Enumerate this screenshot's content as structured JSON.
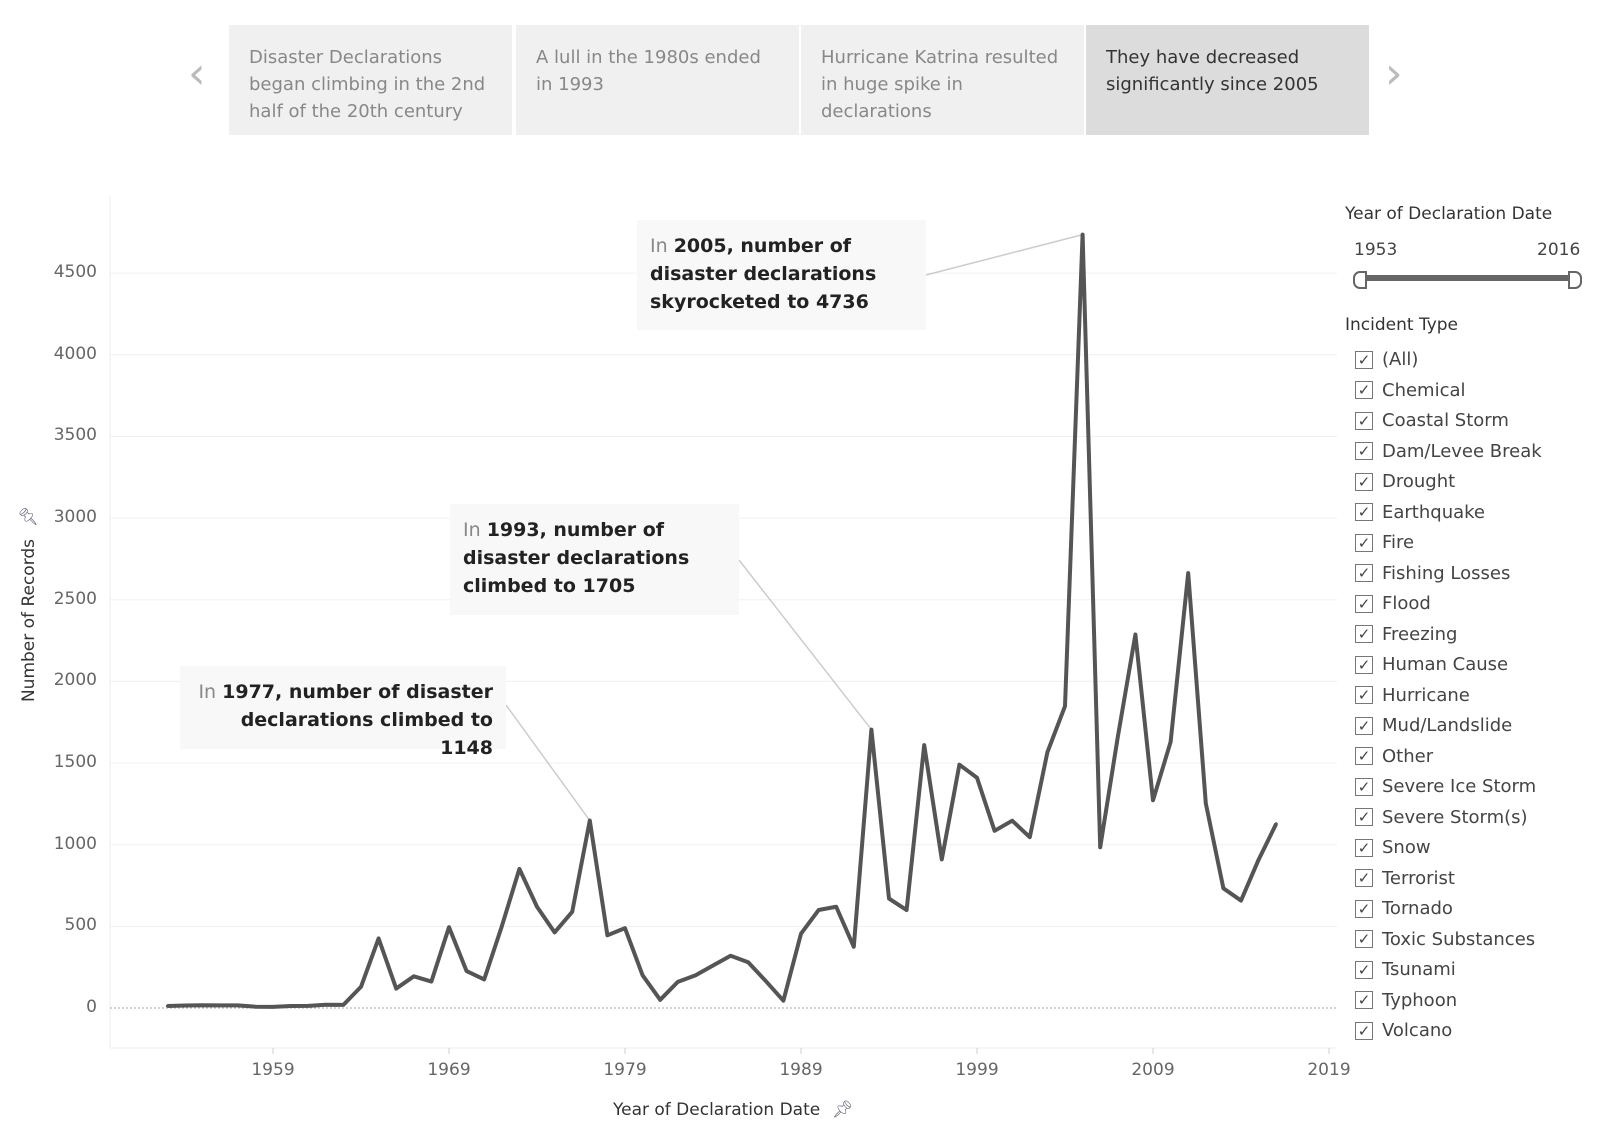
{
  "story": {
    "points": [
      "Disaster Declarations began climbing in the 2nd half of the 20th century",
      "A lull in the 1980s ended in 1993",
      "Hurricane Katrina resulted in huge spike in declarations",
      "They have decreased significantly since 2005"
    ],
    "active_index": 3,
    "prev_icon": "chevron-left-icon",
    "next_icon": "chevron-right-icon"
  },
  "annotations": [
    {
      "lead": "In ",
      "bold": "2005, number of disaster declarations skyrocketed to 4736"
    },
    {
      "lead": "In ",
      "bold": "1993, number of disaster declarations climbed to 1705"
    },
    {
      "lead": "In ",
      "bold": "1977, number of disaster declarations climbed to 1148"
    }
  ],
  "filters": {
    "year_title": "Year of Declaration Date",
    "year_min": "1953",
    "year_max": "2016",
    "incident_title": "Incident Type",
    "incident_types": [
      "(All)",
      "Chemical",
      "Coastal Storm",
      "Dam/Levee Break",
      "Drought",
      "Earthquake",
      "Fire",
      "Fishing Losses",
      "Flood",
      "Freezing",
      "Human Cause",
      "Hurricane",
      "Mud/Landslide",
      "Other",
      "Severe Ice Storm",
      "Severe Storm(s)",
      "Snow",
      "Terrorist",
      "Tornado",
      "Toxic Substances",
      "Tsunami",
      "Typhoon",
      "Volcano"
    ],
    "check_mark": "✓"
  },
  "chart_data": {
    "type": "line",
    "xlabel": "Year of Declaration Date",
    "ylabel": "Number of Records",
    "xlim": [
      1950,
      2020
    ],
    "ylim": [
      -230,
      4900
    ],
    "xticks": [
      "1959",
      "1969",
      "1979",
      "1989",
      "1999",
      "2009",
      "2019"
    ],
    "yticks": [
      "0",
      "500",
      "1000",
      "1500",
      "2000",
      "2500",
      "3000",
      "3500",
      "4000",
      "4500"
    ],
    "grid": true,
    "line_color": "#555555",
    "x": [
      1953,
      1954,
      1955,
      1956,
      1957,
      1958,
      1959,
      1960,
      1961,
      1962,
      1963,
      1964,
      1965,
      1966,
      1967,
      1968,
      1969,
      1970,
      1971,
      1972,
      1973,
      1974,
      1975,
      1976,
      1977,
      1978,
      1979,
      1980,
      1981,
      1982,
      1983,
      1984,
      1985,
      1986,
      1987,
      1988,
      1989,
      1990,
      1991,
      1992,
      1993,
      1994,
      1995,
      1996,
      1997,
      1998,
      1999,
      2000,
      2001,
      2002,
      2003,
      2004,
      2005,
      2006,
      2007,
      2008,
      2009,
      2010,
      2011,
      2012,
      2013,
      2014,
      2015,
      2016
    ],
    "y": [
      12,
      15,
      17,
      16,
      16,
      8,
      7,
      12,
      13,
      20,
      19,
      130,
      426,
      119,
      194,
      162,
      495,
      226,
      175,
      500,
      852,
      620,
      463,
      589,
      1148,
      445,
      489,
      200,
      50,
      160,
      200,
      260,
      320,
      280,
      165,
      45,
      455,
      600,
      620,
      375,
      1705,
      670,
      600,
      1610,
      910,
      1490,
      1410,
      1085,
      1147,
      1046,
      1566,
      1848,
      4736,
      984,
      1660,
      2287,
      1272,
      1629,
      2663,
      1253,
      733,
      658,
      908,
      1128
    ]
  }
}
